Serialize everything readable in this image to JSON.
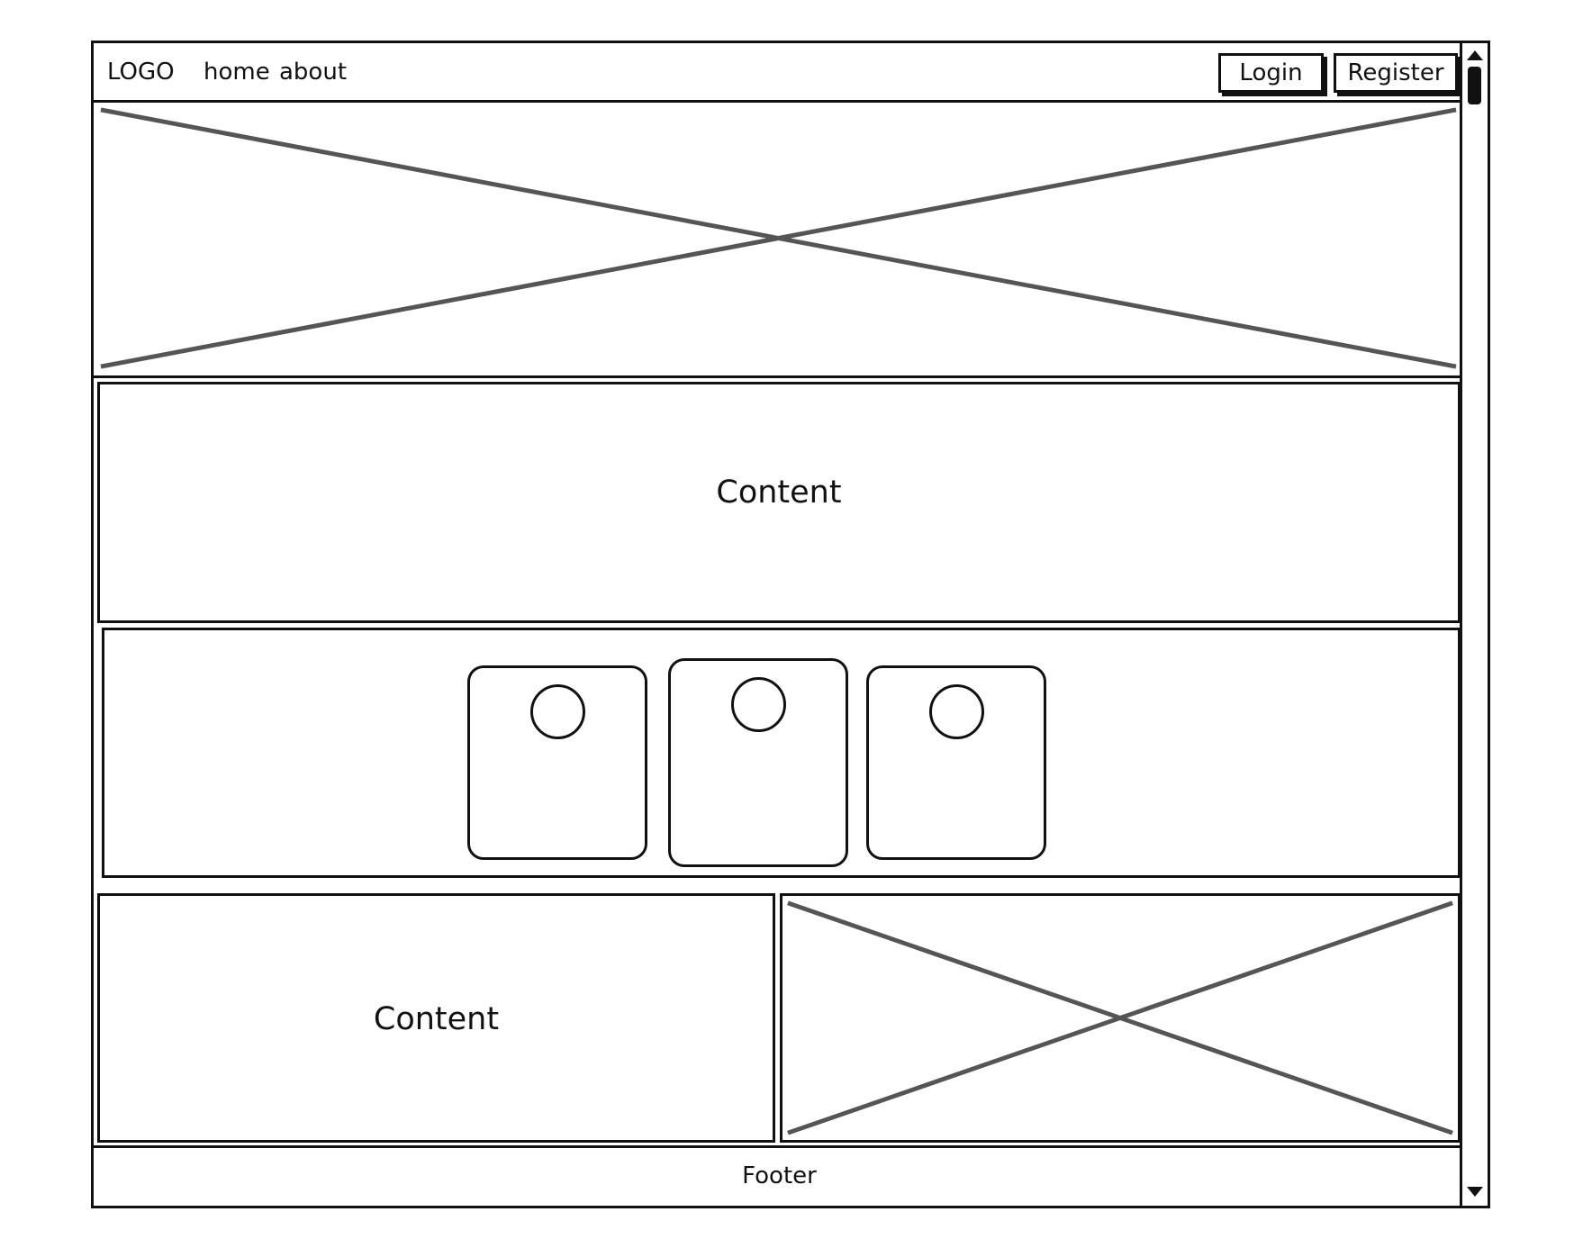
{
  "header": {
    "logo": "LOGO",
    "nav": [
      {
        "label": "home"
      },
      {
        "label": "about"
      }
    ],
    "login_label": "Login",
    "register_label": "Register"
  },
  "hero": {
    "image": "image-placeholder"
  },
  "content_section": {
    "text": "Content"
  },
  "cards": [
    {
      "icon": "circle-icon"
    },
    {
      "icon": "circle-icon"
    },
    {
      "icon": "circle-icon"
    }
  ],
  "split_section": {
    "text": "Content",
    "image": "image-placeholder"
  },
  "footer": {
    "text": "Footer"
  }
}
